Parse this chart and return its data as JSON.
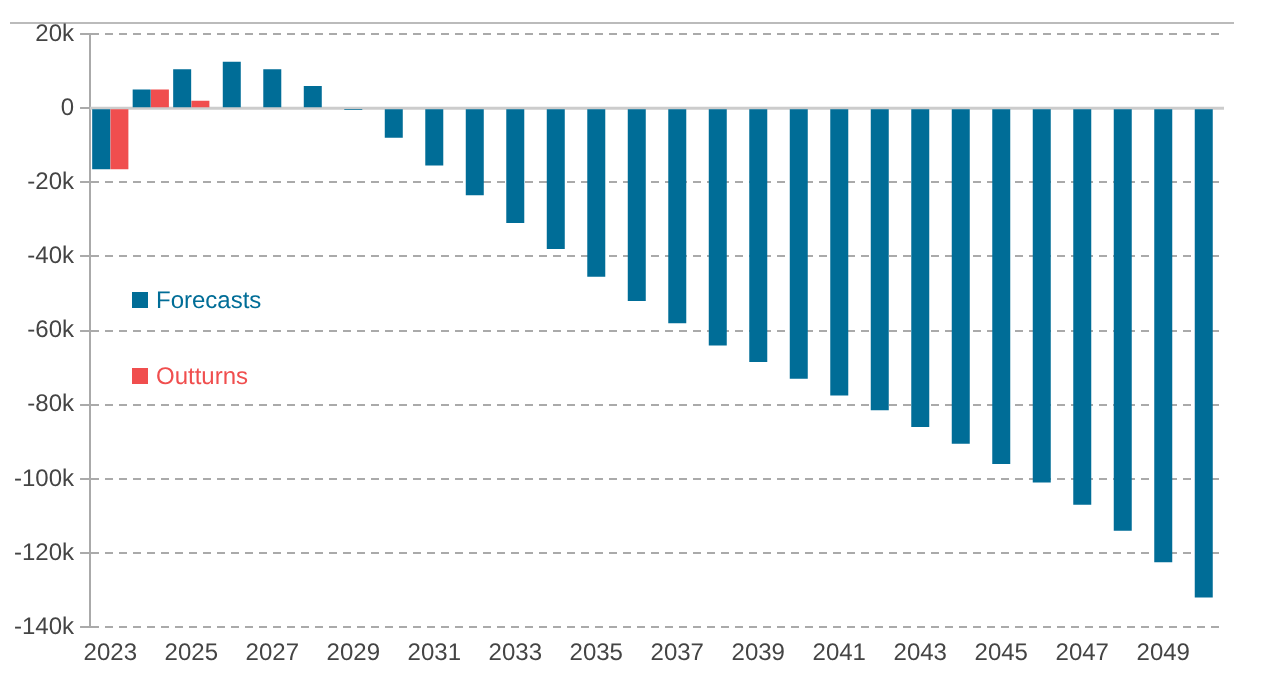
{
  "chart_data": {
    "type": "bar",
    "categories": [
      "2023",
      null,
      "2025",
      null,
      "2027",
      null,
      "2029",
      null,
      "2031",
      null,
      "2033",
      null,
      "2035",
      null,
      "2037",
      null,
      "2039",
      null,
      "2041",
      null,
      "2043",
      null,
      "2045",
      null,
      "2047",
      null,
      "2049",
      null
    ],
    "series": [
      {
        "name": "Forecasts",
        "color": "#006d97",
        "values": [
          -16.5,
          5,
          10.5,
          12.5,
          10.5,
          6,
          -0.5,
          -8,
          -15.5,
          -23.5,
          -31,
          -38,
          -45.5,
          -52,
          -58,
          -64,
          -68.5,
          -73,
          -77.5,
          -81.5,
          -86,
          -90.5,
          -96,
          -101,
          -107,
          -114,
          -122.5,
          -132
        ]
      },
      {
        "name": "Outturns",
        "color": "#f04e4e",
        "values": [
          -16.5,
          5,
          2,
          null,
          null,
          null,
          null,
          null,
          null,
          null,
          null,
          null,
          null,
          null,
          null,
          null,
          null,
          null,
          null,
          null,
          null,
          null,
          null,
          null,
          null,
          null,
          null,
          null
        ]
      }
    ],
    "ylim": [
      -140,
      20
    ],
    "yticks": [
      {
        "value": -140,
        "label": "-140k"
      },
      {
        "value": -120,
        "label": "-120k"
      },
      {
        "value": -100,
        "label": "-100k"
      },
      {
        "value": -80,
        "label": "-80k"
      },
      {
        "value": -60,
        "label": "-60k"
      },
      {
        "value": -40,
        "label": "-40k"
      },
      {
        "value": -20,
        "label": "-20k"
      },
      {
        "value": 0,
        "label": "0"
      },
      {
        "value": 20,
        "label": "20k"
      }
    ],
    "grid": "y",
    "ref_lines": [
      {
        "axis": "y",
        "value": 0,
        "color": "#cccccc",
        "line_style": "solid"
      }
    ],
    "legend": "left"
  }
}
